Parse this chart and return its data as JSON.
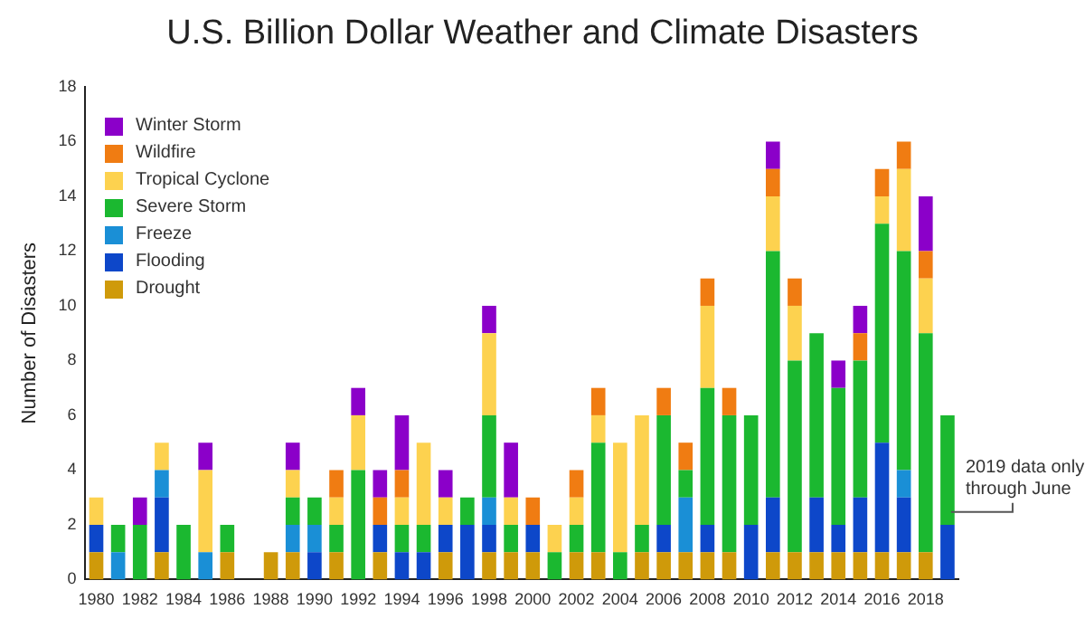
{
  "chart_data": {
    "type": "bar",
    "stacked": true,
    "title": "U.S. Billion Dollar Weather and Climate Disasters",
    "ylabel": "Number of Disasters",
    "categories": [
      "1980",
      null,
      "1982",
      null,
      "1984",
      null,
      "1986",
      null,
      "1988",
      null,
      "1990",
      null,
      "1992",
      null,
      "1994",
      null,
      "1996",
      null,
      "1998",
      null,
      "2000",
      null,
      "2002",
      null,
      "2004",
      null,
      "2006",
      null,
      "2008",
      null,
      "2010",
      null,
      "2012",
      null,
      "2014",
      null,
      "2016",
      null,
      "2018",
      null
    ],
    "series": [
      {
        "name": "Drought",
        "color": "#cf9a0a",
        "values": [
          1,
          0,
          0,
          1,
          0,
          0,
          1,
          0,
          1,
          1,
          0,
          1,
          0,
          1,
          0,
          0,
          1,
          0,
          1,
          1,
          1,
          0,
          1,
          1,
          0,
          1,
          1,
          1,
          1,
          1,
          0,
          1,
          1,
          1,
          1,
          1,
          1,
          1,
          1,
          0
        ]
      },
      {
        "name": "Flooding",
        "color": "#0d47c9",
        "values": [
          1,
          0,
          0,
          2,
          0,
          0,
          0,
          0,
          0,
          0,
          1,
          0,
          0,
          1,
          1,
          1,
          1,
          2,
          1,
          0,
          1,
          0,
          0,
          0,
          0,
          0,
          1,
          0,
          1,
          0,
          2,
          2,
          0,
          2,
          1,
          2,
          4,
          2,
          0,
          2
        ]
      },
      {
        "name": "Freeze",
        "color": "#1a8fd6",
        "values": [
          0,
          1,
          0,
          1,
          0,
          1,
          0,
          0,
          0,
          1,
          1,
          0,
          0,
          0,
          0,
          0,
          0,
          0,
          1,
          0,
          0,
          0,
          0,
          0,
          0,
          0,
          0,
          2,
          0,
          0,
          0,
          0,
          0,
          0,
          0,
          0,
          0,
          1,
          0,
          0
        ]
      },
      {
        "name": "Severe Storm",
        "color": "#1bb830",
        "values": [
          0,
          1,
          2,
          0,
          2,
          0,
          1,
          0,
          0,
          1,
          1,
          1,
          4,
          0,
          1,
          1,
          0,
          1,
          3,
          1,
          0,
          1,
          1,
          4,
          1,
          1,
          4,
          1,
          5,
          5,
          4,
          9,
          7,
          6,
          5,
          5,
          8,
          8,
          8,
          4
        ]
      },
      {
        "name": "Tropical Cyclone",
        "color": "#fdd24f",
        "values": [
          1,
          0,
          0,
          1,
          0,
          3,
          0,
          0,
          0,
          1,
          0,
          1,
          2,
          0,
          1,
          3,
          1,
          0,
          3,
          1,
          0,
          1,
          1,
          1,
          4,
          4,
          0,
          0,
          3,
          0,
          0,
          2,
          2,
          0,
          0,
          0,
          1,
          3,
          2,
          0
        ]
      },
      {
        "name": "Wildfire",
        "color": "#f07c12",
        "values": [
          0,
          0,
          0,
          0,
          0,
          0,
          0,
          0,
          0,
          0,
          0,
          1,
          0,
          1,
          1,
          0,
          0,
          0,
          0,
          0,
          1,
          0,
          1,
          1,
          0,
          0,
          1,
          1,
          1,
          1,
          0,
          1,
          1,
          0,
          0,
          1,
          1,
          1,
          1,
          0
        ]
      },
      {
        "name": "Winter Storm",
        "color": "#8b00c9",
        "values": [
          0,
          0,
          1,
          0,
          0,
          1,
          0,
          0,
          0,
          1,
          0,
          0,
          1,
          1,
          2,
          0,
          1,
          0,
          1,
          2,
          0,
          0,
          0,
          0,
          0,
          0,
          0,
          0,
          0,
          0,
          0,
          1,
          0,
          0,
          1,
          1,
          0,
          0,
          2,
          0
        ]
      }
    ],
    "ylim": [
      0,
      18
    ],
    "yticks": [
      0,
      2,
      4,
      6,
      8,
      10,
      12,
      14,
      16,
      18
    ],
    "grid": false,
    "legend": "top left",
    "annotations": [
      "2019 data only through June"
    ]
  }
}
